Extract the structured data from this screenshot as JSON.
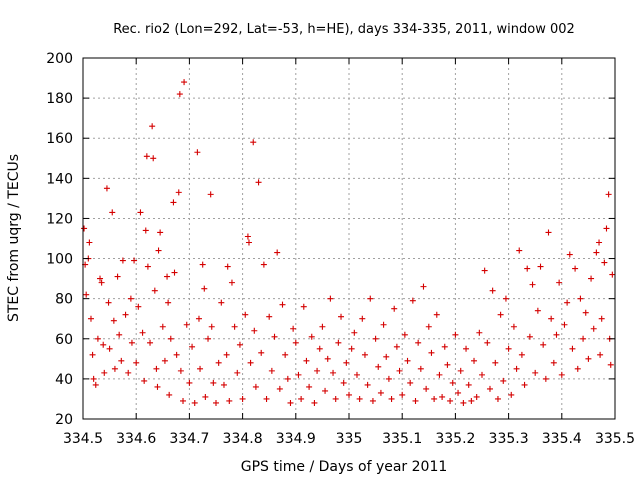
{
  "chart_data": {
    "type": "scatter",
    "title": "Rec. rio2 (Lon=292, Lat=-53, h=HE), days 334-335, 2011, window 002",
    "xlabel": "GPS time / Days of year 2011",
    "ylabel": "STEC from uqrg / TECUs",
    "xlim": [
      334.5,
      335.5
    ],
    "ylim": [
      20,
      200
    ],
    "xticks": [
      "334.5",
      "334.6",
      "334.7",
      "334.8",
      "334.9",
      "335",
      "335.1",
      "335.2",
      "335.3",
      "335.4",
      "335.5"
    ],
    "yticks": [
      "20",
      "40",
      "60",
      "80",
      "100",
      "120",
      "140",
      "160",
      "180",
      "200"
    ],
    "grid": true,
    "marker": "plus",
    "color": "#d40000",
    "series": [
      {
        "points": [
          [
            334.502,
            115
          ],
          [
            334.504,
            97
          ],
          [
            334.506,
            82
          ],
          [
            334.51,
            100
          ],
          [
            334.512,
            108
          ],
          [
            334.515,
            70
          ],
          [
            334.518,
            52
          ],
          [
            334.52,
            40
          ],
          [
            334.524,
            37
          ],
          [
            334.528,
            60
          ],
          [
            334.532,
            90
          ],
          [
            334.535,
            88
          ],
          [
            334.538,
            57
          ],
          [
            334.54,
            43
          ],
          [
            334.545,
            135
          ],
          [
            334.548,
            78
          ],
          [
            334.55,
            55
          ],
          [
            334.555,
            123
          ],
          [
            334.558,
            69
          ],
          [
            334.56,
            45
          ],
          [
            334.565,
            91
          ],
          [
            334.568,
            62
          ],
          [
            334.572,
            49
          ],
          [
            334.575,
            99
          ],
          [
            334.58,
            72
          ],
          [
            334.585,
            43
          ],
          [
            334.59,
            80
          ],
          [
            334.592,
            58
          ],
          [
            334.596,
            99
          ],
          [
            334.6,
            48
          ],
          [
            334.604,
            76
          ],
          [
            334.608,
            123
          ],
          [
            334.612,
            63
          ],
          [
            334.615,
            39
          ],
          [
            334.618,
            114
          ],
          [
            334.62,
            151
          ],
          [
            334.622,
            96
          ],
          [
            334.626,
            58
          ],
          [
            334.63,
            166
          ],
          [
            334.632,
            150
          ],
          [
            334.635,
            84
          ],
          [
            334.638,
            45
          ],
          [
            334.64,
            36
          ],
          [
            334.642,
            104
          ],
          [
            334.645,
            113
          ],
          [
            334.65,
            66
          ],
          [
            334.654,
            49
          ],
          [
            334.658,
            91
          ],
          [
            334.66,
            78
          ],
          [
            334.662,
            32
          ],
          [
            334.665,
            60
          ],
          [
            334.67,
            128
          ],
          [
            334.672,
            93
          ],
          [
            334.676,
            52
          ],
          [
            334.68,
            133
          ],
          [
            334.682,
            182
          ],
          [
            334.684,
            44
          ],
          [
            334.688,
            29
          ],
          [
            334.69,
            188
          ],
          [
            334.695,
            67
          ],
          [
            334.7,
            38
          ],
          [
            334.705,
            56
          ],
          [
            334.71,
            28
          ],
          [
            334.715,
            153
          ],
          [
            334.718,
            70
          ],
          [
            334.72,
            45
          ],
          [
            334.725,
            97
          ],
          [
            334.728,
            85
          ],
          [
            334.73,
            31
          ],
          [
            334.735,
            60
          ],
          [
            334.74,
            132
          ],
          [
            334.742,
            66
          ],
          [
            334.745,
            38
          ],
          [
            334.75,
            28
          ],
          [
            334.755,
            48
          ],
          [
            334.76,
            78
          ],
          [
            334.765,
            37
          ],
          [
            334.77,
            52
          ],
          [
            334.772,
            96
          ],
          [
            334.775,
            29
          ],
          [
            334.78,
            88
          ],
          [
            334.785,
            66
          ],
          [
            334.79,
            43
          ],
          [
            334.795,
            57
          ],
          [
            334.8,
            30
          ],
          [
            334.805,
            72
          ],
          [
            334.81,
            111
          ],
          [
            334.812,
            108
          ],
          [
            334.815,
            48
          ],
          [
            334.82,
            158
          ],
          [
            334.822,
            64
          ],
          [
            334.825,
            36
          ],
          [
            334.83,
            138
          ],
          [
            334.835,
            53
          ],
          [
            334.84,
            97
          ],
          [
            334.845,
            30
          ],
          [
            334.85,
            71
          ],
          [
            334.855,
            44
          ],
          [
            334.86,
            61
          ],
          [
            334.865,
            103
          ],
          [
            334.87,
            35
          ],
          [
            334.875,
            77
          ],
          [
            334.88,
            52
          ],
          [
            334.885,
            40
          ],
          [
            334.89,
            28
          ],
          [
            334.895,
            65
          ],
          [
            334.9,
            58
          ],
          [
            334.905,
            42
          ],
          [
            334.91,
            30
          ],
          [
            334.915,
            76
          ],
          [
            334.92,
            49
          ],
          [
            334.925,
            36
          ],
          [
            334.93,
            61
          ],
          [
            334.935,
            28
          ],
          [
            334.94,
            44
          ],
          [
            334.945,
            55
          ],
          [
            334.95,
            66
          ],
          [
            334.955,
            34
          ],
          [
            334.96,
            50
          ],
          [
            334.965,
            80
          ],
          [
            334.97,
            43
          ],
          [
            334.975,
            30
          ],
          [
            334.98,
            58
          ],
          [
            334.985,
            71
          ],
          [
            334.99,
            38
          ],
          [
            334.995,
            48
          ],
          [
            335.0,
            32
          ],
          [
            335.005,
            55
          ],
          [
            335.01,
            63
          ],
          [
            335.015,
            42
          ],
          [
            335.02,
            30
          ],
          [
            335.025,
            70
          ],
          [
            335.03,
            52
          ],
          [
            335.035,
            37
          ],
          [
            335.04,
            80
          ],
          [
            335.045,
            29
          ],
          [
            335.05,
            60
          ],
          [
            335.055,
            46
          ],
          [
            335.06,
            33
          ],
          [
            335.065,
            67
          ],
          [
            335.07,
            51
          ],
          [
            335.075,
            40
          ],
          [
            335.08,
            30
          ],
          [
            335.085,
            75
          ],
          [
            335.09,
            56
          ],
          [
            335.095,
            44
          ],
          [
            335.1,
            32
          ],
          [
            335.105,
            62
          ],
          [
            335.11,
            49
          ],
          [
            335.115,
            38
          ],
          [
            335.12,
            79
          ],
          [
            335.125,
            29
          ],
          [
            335.13,
            58
          ],
          [
            335.135,
            45
          ],
          [
            335.14,
            86
          ],
          [
            335.145,
            35
          ],
          [
            335.15,
            66
          ],
          [
            335.155,
            53
          ],
          [
            335.16,
            30
          ],
          [
            335.165,
            72
          ],
          [
            335.17,
            42
          ],
          [
            335.175,
            31
          ],
          [
            335.18,
            56
          ],
          [
            335.185,
            47
          ],
          [
            335.19,
            29
          ],
          [
            335.195,
            38
          ],
          [
            335.2,
            62
          ],
          [
            335.205,
            33
          ],
          [
            335.21,
            44
          ],
          [
            335.215,
            28
          ],
          [
            335.22,
            55
          ],
          [
            335.225,
            37
          ],
          [
            335.23,
            29
          ],
          [
            335.235,
            49
          ],
          [
            335.24,
            31
          ],
          [
            335.245,
            63
          ],
          [
            335.25,
            42
          ],
          [
            335.255,
            94
          ],
          [
            335.26,
            58
          ],
          [
            335.265,
            35
          ],
          [
            335.27,
            84
          ],
          [
            335.275,
            48
          ],
          [
            335.28,
            30
          ],
          [
            335.285,
            72
          ],
          [
            335.29,
            39
          ],
          [
            335.295,
            80
          ],
          [
            335.3,
            55
          ],
          [
            335.305,
            32
          ],
          [
            335.31,
            66
          ],
          [
            335.315,
            45
          ],
          [
            335.32,
            104
          ],
          [
            335.325,
            52
          ],
          [
            335.33,
            37
          ],
          [
            335.335,
            95
          ],
          [
            335.34,
            61
          ],
          [
            335.345,
            87
          ],
          [
            335.35,
            43
          ],
          [
            335.355,
            74
          ],
          [
            335.36,
            96
          ],
          [
            335.365,
            57
          ],
          [
            335.37,
            40
          ],
          [
            335.375,
            113
          ],
          [
            335.38,
            70
          ],
          [
            335.385,
            48
          ],
          [
            335.39,
            62
          ],
          [
            335.395,
            88
          ],
          [
            335.4,
            42
          ],
          [
            335.405,
            67
          ],
          [
            335.41,
            78
          ],
          [
            335.415,
            102
          ],
          [
            335.42,
            55
          ],
          [
            335.425,
            95
          ],
          [
            335.43,
            45
          ],
          [
            335.435,
            80
          ],
          [
            335.44,
            60
          ],
          [
            335.445,
            73
          ],
          [
            335.45,
            50
          ],
          [
            335.455,
            90
          ],
          [
            335.46,
            65
          ],
          [
            335.465,
            103
          ],
          [
            335.47,
            108
          ],
          [
            335.472,
            52
          ],
          [
            335.475,
            70
          ],
          [
            335.48,
            98
          ],
          [
            335.484,
            115
          ],
          [
            335.488,
            132
          ],
          [
            335.49,
            60
          ],
          [
            335.492,
            47
          ],
          [
            335.495,
            92
          ]
        ]
      }
    ]
  }
}
